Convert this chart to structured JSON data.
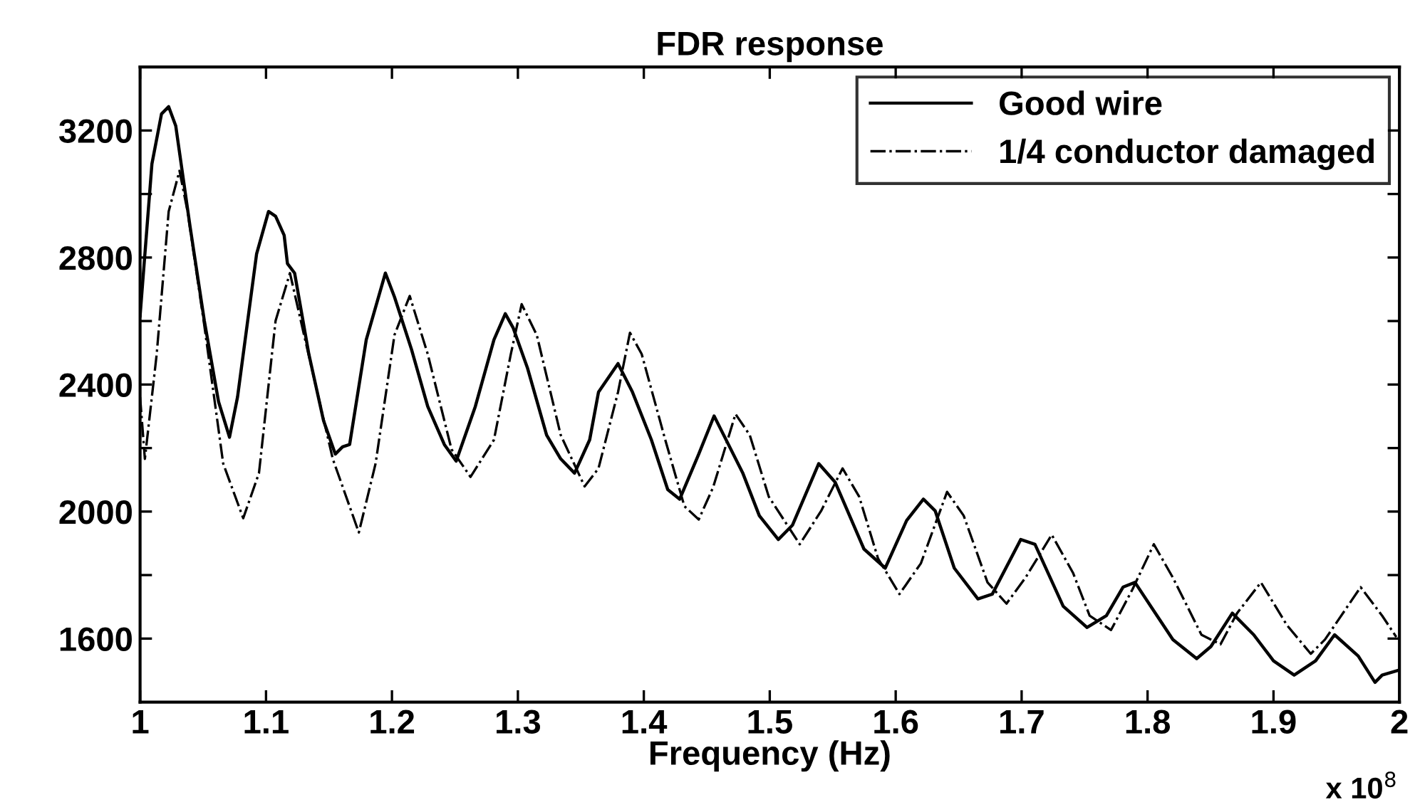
{
  "chart_data": {
    "type": "line",
    "title": "FDR response",
    "xlabel": "Frequency (Hz)",
    "annotations": [
      "x 10$^{8}$"
    ],
    "xlim": [
      1,
      2
    ],
    "xticks": [
      1,
      1.1,
      1.2,
      1.3,
      1.4,
      1.5,
      1.6,
      1.7,
      1.8,
      1.9,
      2
    ],
    "ylim": [
      1400,
      3400
    ],
    "yticks": [
      1600,
      {
        "value": 1800,
        "label": null
      },
      2000,
      {
        "value": 2200,
        "label": null
      },
      2400,
      {
        "value": 2600,
        "label": null
      },
      2800,
      {
        "value": 3000,
        "label": null
      },
      3200
    ],
    "grid": false,
    "legend": "top right",
    "marker": "none",
    "series": [
      {
        "name": "Good wire",
        "color": "#000000",
        "line_style": "solid",
        "x": [
          1.0,
          1.0094,
          1.017,
          1.0227,
          1.0283,
          1.0396,
          1.051,
          1.0623,
          1.071,
          1.0774,
          1.0925,
          1.102,
          1.1076,
          1.1144,
          1.117,
          1.1227,
          1.134,
          1.1457,
          1.155,
          1.1608,
          1.1664,
          1.1796,
          1.1948,
          1.202,
          1.2155,
          1.2284,
          1.2416,
          1.251,
          1.2662,
          1.281,
          1.29,
          1.2963,
          1.3077,
          1.3228,
          1.334,
          1.345,
          1.357,
          1.364,
          1.3795,
          1.391,
          1.406,
          1.419,
          1.4285,
          1.4436,
          1.4558,
          1.4785,
          1.4917,
          1.5068,
          1.518,
          1.5389,
          1.552,
          1.5748,
          1.5917,
          1.6087,
          1.622,
          1.6314,
          1.6465,
          1.6653,
          1.6767,
          1.6993,
          1.7106,
          1.733,
          1.752,
          1.7673,
          1.7805,
          1.79,
          1.805,
          1.8201,
          1.839,
          1.8503,
          1.8673,
          1.8843,
          1.9,
          1.9164,
          1.9334,
          1.9485,
          1.9673,
          1.9806,
          1.9863,
          1.999
        ],
        "values": [
          2616,
          3095,
          3252,
          3275,
          3215,
          2900,
          2601,
          2346,
          2234,
          2361,
          2811,
          2945,
          2930,
          2870,
          2781,
          2751,
          2496,
          2286,
          2181,
          2204,
          2211,
          2541,
          2751,
          2676,
          2511,
          2331,
          2211,
          2159,
          2331,
          2541,
          2623,
          2578,
          2451,
          2241,
          2166,
          2121,
          2226,
          2376,
          2466,
          2376,
          2226,
          2069,
          2039,
          2181,
          2301,
          2122,
          1987,
          1912,
          1957,
          2151,
          2092,
          1882,
          1822,
          1972,
          2039,
          2002,
          1822,
          1725,
          1740,
          1912,
          1897,
          1702,
          1635,
          1672,
          1762,
          1777,
          1687,
          1597,
          1537,
          1575,
          1680,
          1612,
          1530,
          1485,
          1530,
          1612,
          1545,
          1462,
          1485,
          1500
        ]
      },
      {
        "name": "1/4 conductor damaged",
        "color": "#000000",
        "line_style": "dashdot",
        "x": [
          1.0,
          1.0038,
          1.0132,
          1.0227,
          1.0313,
          1.0377,
          1.051,
          1.066,
          1.0819,
          1.0944,
          1.1076,
          1.119,
          1.1302,
          1.153,
          1.1737,
          1.187,
          1.202,
          1.2141,
          1.2284,
          1.2473,
          1.2624,
          1.281,
          1.2944,
          1.303,
          1.315,
          1.334,
          1.353,
          1.364,
          1.3795,
          1.389,
          1.3983,
          1.417,
          1.4322,
          1.4436,
          1.455,
          1.4728,
          1.4841,
          1.4992,
          1.5238,
          1.5408,
          1.5578,
          1.571,
          1.586,
          1.603,
          1.62,
          1.6408,
          1.654,
          1.6729,
          1.688,
          1.7031,
          1.7239,
          1.7408,
          1.754,
          1.771,
          1.788,
          1.805,
          1.8201,
          1.8428,
          1.8579,
          1.8711,
          1.89,
          1.9107,
          1.9296,
          1.9409,
          1.9692,
          1.9863,
          1.9975
        ],
        "values": [
          2361,
          2166,
          2496,
          2945,
          3073,
          2945,
          2586,
          2151,
          1979,
          2121,
          2601,
          2751,
          2556,
          2166,
          1934,
          2151,
          2556,
          2679,
          2496,
          2196,
          2109,
          2226,
          2496,
          2653,
          2556,
          2241,
          2079,
          2136,
          2376,
          2563,
          2496,
          2226,
          2017,
          1975,
          2076,
          2307,
          2241,
          2047,
          1897,
          2002,
          2136,
          2047,
          1852,
          1740,
          1837,
          2062,
          1987,
          1777,
          1710,
          1792,
          1927,
          1807,
          1672,
          1627,
          1755,
          1897,
          1792,
          1612,
          1582,
          1680,
          1777,
          1642,
          1552,
          1597,
          1762,
          1672,
          1605
        ]
      }
    ]
  }
}
